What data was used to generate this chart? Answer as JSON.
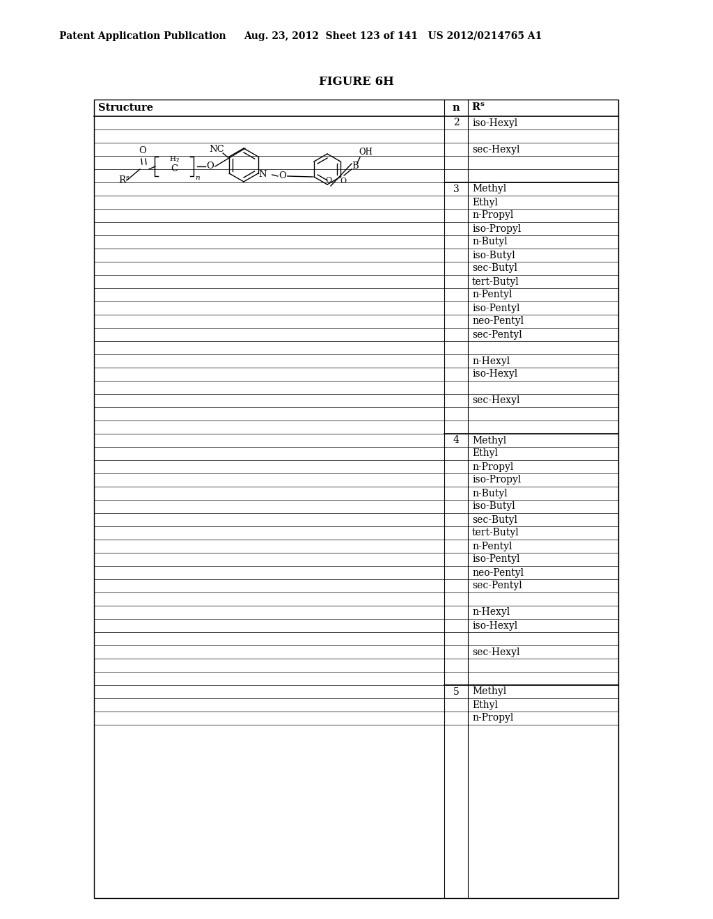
{
  "page_header_left": "Patent Application Publication",
  "page_header_mid": "Aug. 23, 2012  Sheet 123 of 141   US 2012/0214765 A1",
  "figure_title": "FIGURE 6H",
  "table_header_col1": "Structure",
  "table_header_col2": "n",
  "table_header_col3": "R",
  "bg_color": "#ffffff",
  "text_color": "#000000",
  "table_rows": [
    {
      "n": "2",
      "rs": "iso-Hexyl",
      "thick_top": true
    },
    {
      "n": "",
      "rs": ""
    },
    {
      "n": "",
      "rs": "sec-Hexyl"
    },
    {
      "n": "",
      "rs": ""
    },
    {
      "n": "",
      "rs": ""
    },
    {
      "n": "3",
      "rs": "Methyl",
      "thick_top": true
    },
    {
      "n": "",
      "rs": "Ethyl"
    },
    {
      "n": "",
      "rs": "n-Propyl"
    },
    {
      "n": "",
      "rs": "iso-Propyl"
    },
    {
      "n": "",
      "rs": "n-Butyl"
    },
    {
      "n": "",
      "rs": "iso-Butyl"
    },
    {
      "n": "",
      "rs": "sec-Butyl"
    },
    {
      "n": "",
      "rs": "tert-Butyl"
    },
    {
      "n": "",
      "rs": "n-Pentyl"
    },
    {
      "n": "",
      "rs": "iso-Pentyl"
    },
    {
      "n": "",
      "rs": "neo-Pentyl"
    },
    {
      "n": "",
      "rs": "sec-Pentyl"
    },
    {
      "n": "",
      "rs": ""
    },
    {
      "n": "",
      "rs": "n-Hexyl"
    },
    {
      "n": "",
      "rs": "iso-Hexyl"
    },
    {
      "n": "",
      "rs": ""
    },
    {
      "n": "",
      "rs": "sec-Hexyl"
    },
    {
      "n": "",
      "rs": ""
    },
    {
      "n": "",
      "rs": ""
    },
    {
      "n": "4",
      "rs": "Methyl",
      "thick_top": true
    },
    {
      "n": "",
      "rs": "Ethyl"
    },
    {
      "n": "",
      "rs": "n-Propyl"
    },
    {
      "n": "",
      "rs": "iso-Propyl"
    },
    {
      "n": "",
      "rs": "n-Butyl"
    },
    {
      "n": "",
      "rs": "iso-Butyl"
    },
    {
      "n": "",
      "rs": "sec-Butyl"
    },
    {
      "n": "",
      "rs": "tert-Butyl"
    },
    {
      "n": "",
      "rs": "n-Pentyl"
    },
    {
      "n": "",
      "rs": "iso-Pentyl"
    },
    {
      "n": "",
      "rs": "neo-Pentyl"
    },
    {
      "n": "",
      "rs": "sec-Pentyl"
    },
    {
      "n": "",
      "rs": ""
    },
    {
      "n": "",
      "rs": "n-Hexyl"
    },
    {
      "n": "",
      "rs": "iso-Hexyl"
    },
    {
      "n": "",
      "rs": ""
    },
    {
      "n": "",
      "rs": "sec-Hexyl"
    },
    {
      "n": "",
      "rs": ""
    },
    {
      "n": "",
      "rs": ""
    },
    {
      "n": "5",
      "rs": "Methyl",
      "thick_top": true
    },
    {
      "n": "",
      "rs": "Ethyl"
    },
    {
      "n": "",
      "rs": "n-Propyl"
    }
  ]
}
